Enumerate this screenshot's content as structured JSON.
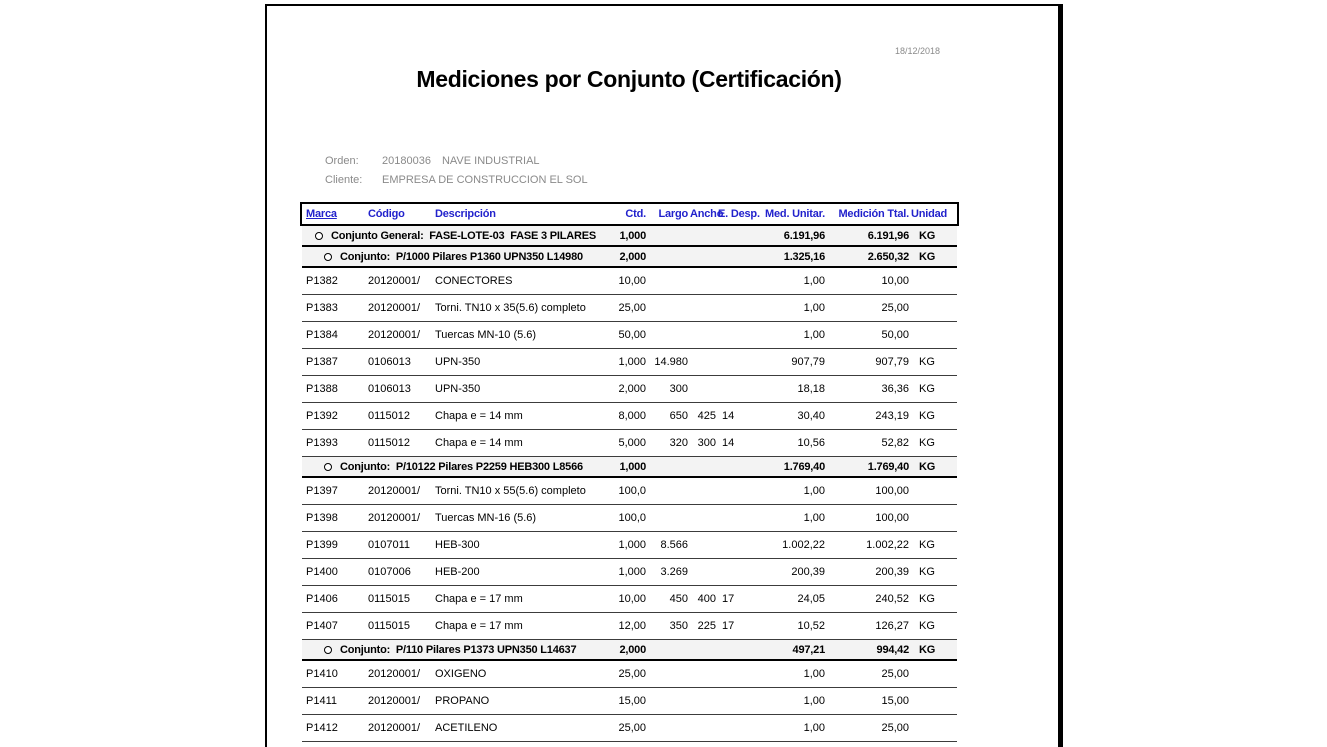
{
  "report": {
    "date": "18/12/2018",
    "title": "Mediciones por Conjunto (Certificación)"
  },
  "info": {
    "orden": {
      "label": "Orden:",
      "number": "20180036",
      "name": "NAVE INDUSTRIAL"
    },
    "cliente": {
      "label": "Cliente:",
      "value": "EMPRESA DE CONSTRUCCION EL SOL"
    }
  },
  "table": {
    "columns": [
      {
        "key": "marca",
        "label": "Marca"
      },
      {
        "key": "codigo",
        "label": "Código"
      },
      {
        "key": "desc",
        "label": "Descripción"
      },
      {
        "key": "ctd",
        "label": "Ctd."
      },
      {
        "key": "largo",
        "label": "Largo"
      },
      {
        "key": "ancho",
        "label": "Ancho"
      },
      {
        "key": "e_desp",
        "label": "E. Desp."
      },
      {
        "key": "med_unitar",
        "label": "Med. Unitar."
      },
      {
        "key": "med_ttal",
        "label": "Medición Ttal."
      },
      {
        "key": "unidad",
        "label": "Unidad"
      }
    ],
    "rows": [
      {
        "type": "group",
        "level": 1,
        "text": "Conjunto General:  FASE-LOTE-03  FASE 3 PILARES",
        "ctd": "1,000",
        "med_unitar": "6.191,96",
        "med_ttal": "6.191,96",
        "unidad": "KG"
      },
      {
        "type": "group",
        "level": 2,
        "text": "Conjunto:  P/1000 Pilares P1360 UPN350 L14980",
        "ctd": "2,000",
        "med_unitar": "1.325,16",
        "med_ttal": "2.650,32",
        "unidad": "KG"
      },
      {
        "type": "item",
        "marca": "P1382",
        "codigo": "20120001/",
        "desc": "CONECTORES",
        "ctd": "10,00",
        "largo": "",
        "ancho": "",
        "e_desp": "",
        "med_unitar": "1,00",
        "med_ttal": "10,00",
        "unidad": ""
      },
      {
        "type": "item",
        "marca": "P1383",
        "codigo": "20120001/",
        "desc": "Torni. TN10 x 35(5.6) completo",
        "ctd": "25,00",
        "largo": "",
        "ancho": "",
        "e_desp": "",
        "med_unitar": "1,00",
        "med_ttal": "25,00",
        "unidad": ""
      },
      {
        "type": "item",
        "marca": "P1384",
        "codigo": "20120001/",
        "desc": "Tuercas MN-10 (5.6)",
        "ctd": "50,00",
        "largo": "",
        "ancho": "",
        "e_desp": "",
        "med_unitar": "1,00",
        "med_ttal": "50,00",
        "unidad": ""
      },
      {
        "type": "item",
        "marca": "P1387",
        "codigo": "0106013",
        "desc": "UPN-350",
        "ctd": "1,000",
        "largo": "14.980",
        "ancho": "",
        "e_desp": "",
        "med_unitar": "907,79",
        "med_ttal": "907,79",
        "unidad": "KG"
      },
      {
        "type": "item",
        "marca": "P1388",
        "codigo": "0106013",
        "desc": "UPN-350",
        "ctd": "2,000",
        "largo": "300",
        "ancho": "",
        "e_desp": "",
        "med_unitar": "18,18",
        "med_ttal": "36,36",
        "unidad": "KG"
      },
      {
        "type": "item",
        "marca": "P1392",
        "codigo": "0115012",
        "desc": "Chapa e = 14 mm",
        "ctd": "8,000",
        "largo": "650",
        "ancho": "425",
        "e_desp": "14",
        "med_unitar": "30,40",
        "med_ttal": "243,19",
        "unidad": "KG"
      },
      {
        "type": "item",
        "marca": "P1393",
        "codigo": "0115012",
        "desc": "Chapa e = 14 mm",
        "ctd": "5,000",
        "largo": "320",
        "ancho": "300",
        "e_desp": "14",
        "med_unitar": "10,56",
        "med_ttal": "52,82",
        "unidad": "KG"
      },
      {
        "type": "group",
        "level": 2,
        "text": "Conjunto:  P/10122 Pilares P2259 HEB300 L8566",
        "ctd": "1,000",
        "med_unitar": "1.769,40",
        "med_ttal": "1.769,40",
        "unidad": "KG"
      },
      {
        "type": "item",
        "marca": "P1397",
        "codigo": "20120001/",
        "desc": "Torni. TN10 x 55(5.6) completo",
        "ctd": "100,0",
        "largo": "",
        "ancho": "",
        "e_desp": "",
        "med_unitar": "1,00",
        "med_ttal": "100,00",
        "unidad": ""
      },
      {
        "type": "item",
        "marca": "P1398",
        "codigo": "20120001/",
        "desc": "Tuercas MN-16 (5.6)",
        "ctd": "100,0",
        "largo": "",
        "ancho": "",
        "e_desp": "",
        "med_unitar": "1,00",
        "med_ttal": "100,00",
        "unidad": ""
      },
      {
        "type": "item",
        "marca": "P1399",
        "codigo": "0107011",
        "desc": "HEB-300",
        "ctd": "1,000",
        "largo": "8.566",
        "ancho": "",
        "e_desp": "",
        "med_unitar": "1.002,22",
        "med_ttal": "1.002,22",
        "unidad": "KG"
      },
      {
        "type": "item",
        "marca": "P1400",
        "codigo": "0107006",
        "desc": "HEB-200",
        "ctd": "1,000",
        "largo": "3.269",
        "ancho": "",
        "e_desp": "",
        "med_unitar": "200,39",
        "med_ttal": "200,39",
        "unidad": "KG"
      },
      {
        "type": "item",
        "marca": "P1406",
        "codigo": "0115015",
        "desc": "Chapa e = 17 mm",
        "ctd": "10,00",
        "largo": "450",
        "ancho": "400",
        "e_desp": "17",
        "med_unitar": "24,05",
        "med_ttal": "240,52",
        "unidad": "KG"
      },
      {
        "type": "item",
        "marca": "P1407",
        "codigo": "0115015",
        "desc": "Chapa e = 17 mm",
        "ctd": "12,00",
        "largo": "350",
        "ancho": "225",
        "e_desp": "17",
        "med_unitar": "10,52",
        "med_ttal": "126,27",
        "unidad": "KG"
      },
      {
        "type": "group",
        "level": 2,
        "text": "Conjunto:  P/110 Pilares P1373 UPN350 L14637",
        "ctd": "2,000",
        "med_unitar": "497,21",
        "med_ttal": "994,42",
        "unidad": "KG"
      },
      {
        "type": "item",
        "marca": "P1410",
        "codigo": "20120001/",
        "desc": "OXIGENO",
        "ctd": "25,00",
        "largo": "",
        "ancho": "",
        "e_desp": "",
        "med_unitar": "1,00",
        "med_ttal": "25,00",
        "unidad": ""
      },
      {
        "type": "item",
        "marca": "P1411",
        "codigo": "20120001/",
        "desc": "PROPANO",
        "ctd": "15,00",
        "largo": "",
        "ancho": "",
        "e_desp": "",
        "med_unitar": "1,00",
        "med_ttal": "15,00",
        "unidad": ""
      },
      {
        "type": "item",
        "marca": "P1412",
        "codigo": "20120001/",
        "desc": "ACETILENO",
        "ctd": "25,00",
        "largo": "",
        "ancho": "",
        "e_desp": "",
        "med_unitar": "1,00",
        "med_ttal": "25,00",
        "unidad": ""
      }
    ]
  }
}
